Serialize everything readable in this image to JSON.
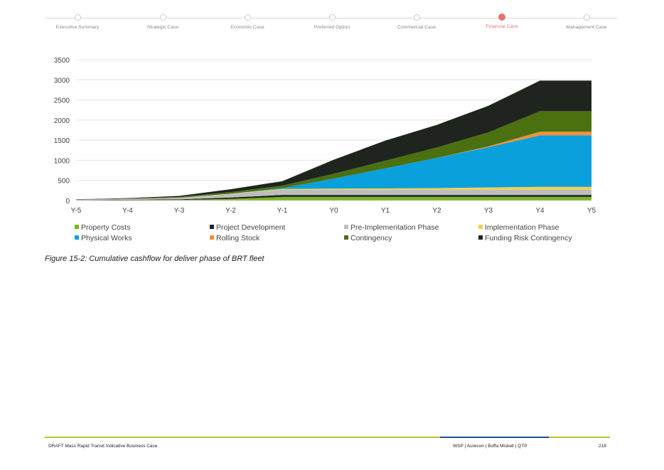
{
  "nav": {
    "steps": [
      {
        "label": "Executive Summary"
      },
      {
        "label": "Strategic Case"
      },
      {
        "label": "Economic Case"
      },
      {
        "label": "Preferred Option"
      },
      {
        "label": "Commercial Case"
      },
      {
        "label": "Financial Case"
      },
      {
        "label": "Management Case"
      }
    ],
    "active_index": 5,
    "active_color": "#e57373"
  },
  "chart_data": {
    "type": "area",
    "stacked": true,
    "x": [
      "Y-5",
      "Y-4",
      "Y-3",
      "Y-2",
      "Y-1",
      "Y0",
      "Y1",
      "Y2",
      "Y3",
      "Y4",
      "Y5"
    ],
    "ylim": [
      0,
      3500
    ],
    "yticks": [
      0,
      500,
      1000,
      1500,
      2000,
      2500,
      3000,
      3500
    ],
    "grid": true,
    "legend_position": "bottom",
    "series": [
      {
        "name": "Property Costs",
        "color": "#7ab51d",
        "values": [
          5,
          10,
          15,
          40,
          90,
          90,
          90,
          90,
          90,
          90,
          90
        ]
      },
      {
        "name": "Project Development",
        "color": "#222222",
        "values": [
          5,
          10,
          15,
          35,
          50,
          50,
          50,
          50,
          50,
          50,
          50
        ]
      },
      {
        "name": "Pre-Implementation Phase",
        "color": "#bdbdbd",
        "values": [
          10,
          20,
          40,
          90,
          130,
          130,
          130,
          130,
          130,
          130,
          130
        ]
      },
      {
        "name": "Implementation Phase",
        "color": "#f2d04b",
        "values": [
          0,
          0,
          0,
          5,
          20,
          25,
          30,
          40,
          55,
          70,
          70
        ]
      },
      {
        "name": "Physical Works",
        "color": "#0aa0dc",
        "values": [
          0,
          0,
          0,
          0,
          20,
          250,
          500,
          750,
          1000,
          1280,
          1280
        ]
      },
      {
        "name": "Rolling Stock",
        "color": "#f0903a",
        "values": [
          0,
          0,
          0,
          0,
          0,
          0,
          0,
          0,
          20,
          90,
          90
        ]
      },
      {
        "name": "Contingency",
        "color": "#4a7010",
        "values": [
          5,
          10,
          20,
          40,
          60,
          120,
          190,
          260,
          350,
          510,
          510
        ]
      },
      {
        "name": "Funding Risk Contingency",
        "color": "#1f241f",
        "values": [
          5,
          10,
          25,
          70,
          110,
          350,
          500,
          560,
          660,
          760,
          760
        ]
      }
    ]
  },
  "caption": "Figure 15-2: Cumulative cashflow for deliver phase of BRT fleet",
  "footer": {
    "left": "DRAFT Mass Rapid Transit Indicative Business Case",
    "right": "WSP | Aurecon | Boffa Miskell | QTP",
    "page": "218"
  }
}
